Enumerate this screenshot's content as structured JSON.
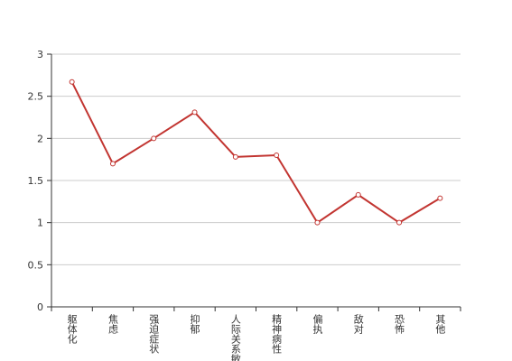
{
  "chart_data": {
    "type": "line",
    "categories": [
      "躯体化",
      "焦虑",
      "强迫症状",
      "抑郁",
      "人际关系敏感",
      "精神病性",
      "偏执",
      "敌对",
      "恐怖",
      "其他"
    ],
    "series": [
      {
        "color": "#c23531",
        "values": [
          2.67,
          1.7,
          2.0,
          2.31,
          1.78,
          1.8,
          1.0,
          1.33,
          1.0,
          1.29
        ]
      }
    ],
    "ylim": [
      0,
      3
    ],
    "yticks": [
      0,
      0.5,
      1,
      1.5,
      2,
      2.5,
      3
    ],
    "grid": true
  }
}
